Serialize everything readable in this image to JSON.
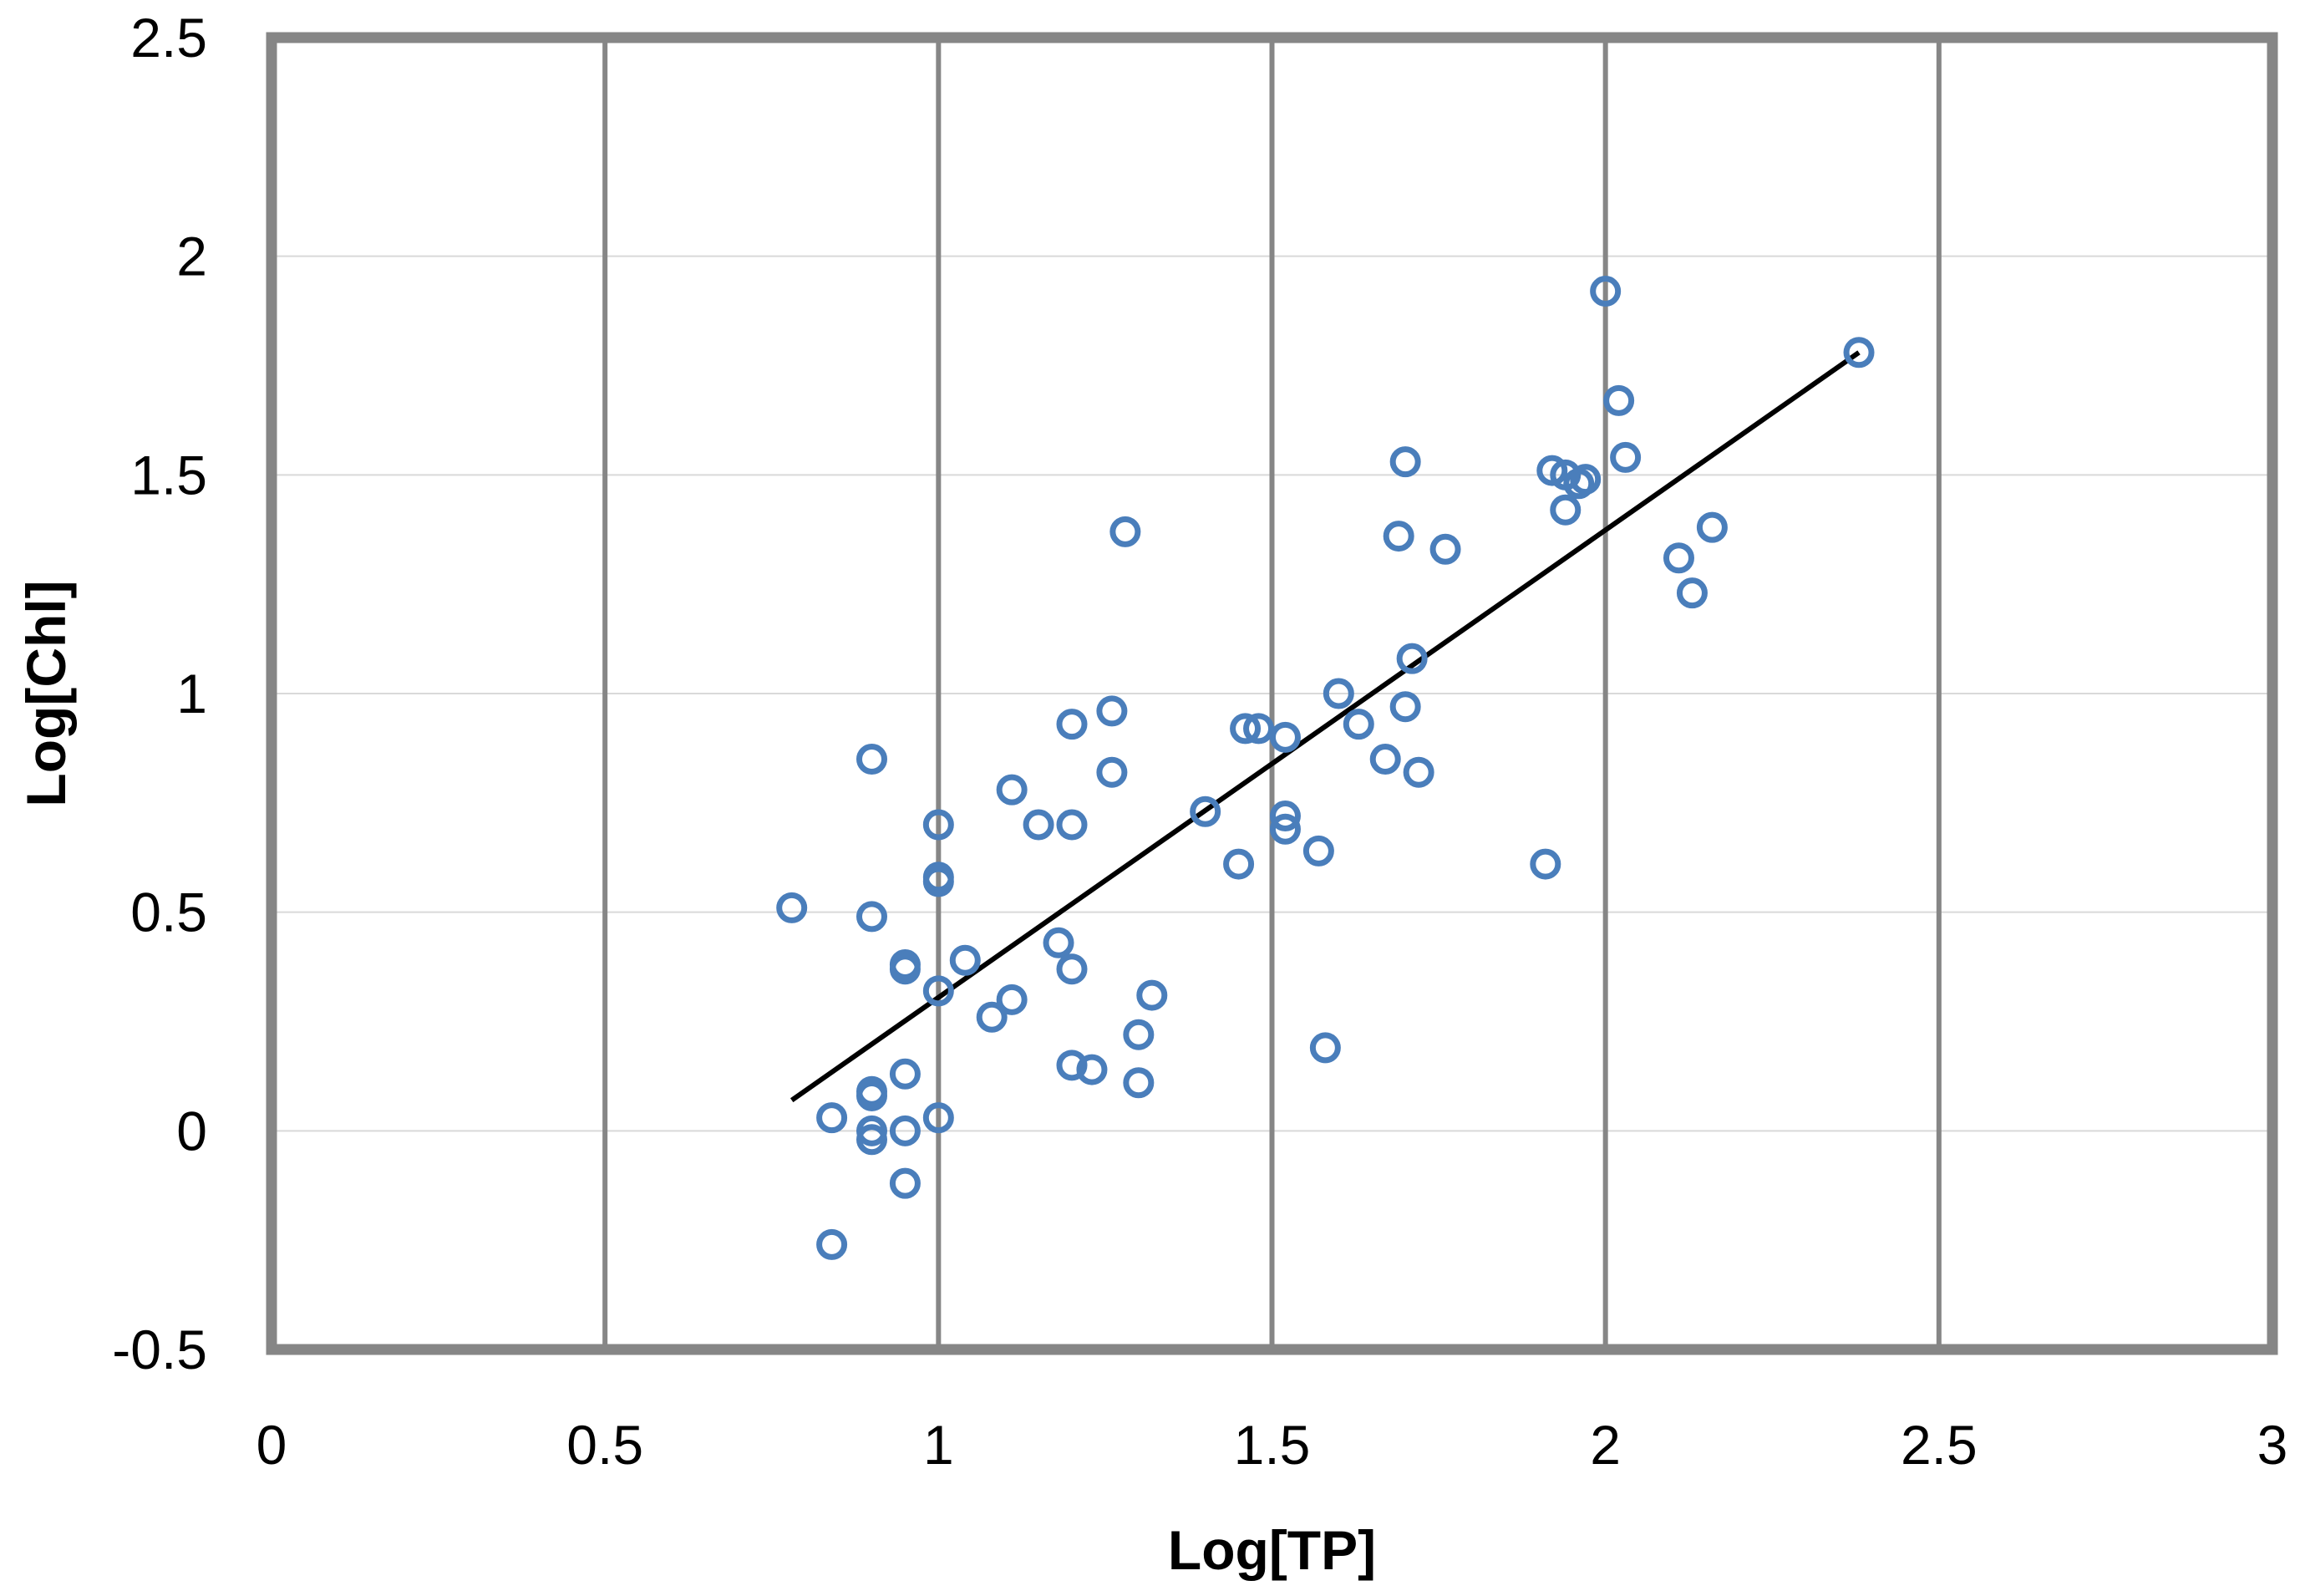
{
  "chart_data": {
    "type": "scatter",
    "title": "",
    "xlabel": "Log[TP]",
    "ylabel": "Log[Chl]",
    "xlim": [
      0,
      3
    ],
    "ylim": [
      -0.5,
      2.5
    ],
    "x_ticks": [
      "0",
      "0.5",
      "1",
      "1.5",
      "2",
      "2.5",
      "3"
    ],
    "y_ticks": [
      "-0.5",
      "0",
      "0.5",
      "1",
      "1.5",
      "2",
      "2.5"
    ],
    "grid": {
      "x_major": true,
      "y_major": true
    },
    "legend": "none",
    "colors": {
      "marker": "#4a7ebb",
      "trendline": "#000000",
      "frame": "#868686",
      "x_grid": "#868686",
      "y_grid": "#d9d9d9"
    },
    "series": [
      {
        "marker": "open-circle",
        "points": [
          [
            0.78,
            0.51
          ],
          [
            0.84,
            0.03
          ],
          [
            0.84,
            -0.26
          ],
          [
            0.9,
            0.85
          ],
          [
            0.9,
            0.49
          ],
          [
            0.9,
            0.09
          ],
          [
            0.9,
            0.08
          ],
          [
            0.9,
            0.0
          ],
          [
            0.9,
            -0.02
          ],
          [
            0.95,
            0.38
          ],
          [
            0.95,
            0.37
          ],
          [
            0.95,
            0.13
          ],
          [
            0.95,
            0.0
          ],
          [
            0.95,
            -0.12
          ],
          [
            1.0,
            0.7
          ],
          [
            1.0,
            0.58
          ],
          [
            1.0,
            0.57
          ],
          [
            1.0,
            0.32
          ],
          [
            1.0,
            0.03
          ],
          [
            1.04,
            0.39
          ],
          [
            1.08,
            0.26
          ],
          [
            1.11,
            0.78
          ],
          [
            1.11,
            0.3
          ],
          [
            1.15,
            0.7
          ],
          [
            1.18,
            0.43
          ],
          [
            1.2,
            0.93
          ],
          [
            1.2,
            0.7
          ],
          [
            1.2,
            0.37
          ],
          [
            1.2,
            0.15
          ],
          [
            1.23,
            0.14
          ],
          [
            1.26,
            0.96
          ],
          [
            1.26,
            0.82
          ],
          [
            1.28,
            1.37
          ],
          [
            1.3,
            0.22
          ],
          [
            1.3,
            0.11
          ],
          [
            1.32,
            0.31
          ],
          [
            1.4,
            0.73
          ],
          [
            1.45,
            0.61
          ],
          [
            1.46,
            0.92
          ],
          [
            1.48,
            0.92
          ],
          [
            1.52,
            0.9
          ],
          [
            1.52,
            0.72
          ],
          [
            1.52,
            0.69
          ],
          [
            1.57,
            0.64
          ],
          [
            1.58,
            0.19
          ],
          [
            1.6,
            1.0
          ],
          [
            1.63,
            0.93
          ],
          [
            1.67,
            0.85
          ],
          [
            1.69,
            1.36
          ],
          [
            1.7,
            1.53
          ],
          [
            1.7,
            0.97
          ],
          [
            1.71,
            1.08
          ],
          [
            1.72,
            0.82
          ],
          [
            1.76,
            1.33
          ],
          [
            1.91,
            0.61
          ],
          [
            1.92,
            1.51
          ],
          [
            1.94,
            1.5
          ],
          [
            1.94,
            1.42
          ],
          [
            1.96,
            1.48
          ],
          [
            1.97,
            1.49
          ],
          [
            2.0,
            1.92
          ],
          [
            2.02,
            1.67
          ],
          [
            2.03,
            1.54
          ],
          [
            2.11,
            1.31
          ],
          [
            2.13,
            1.23
          ],
          [
            2.16,
            1.38
          ],
          [
            2.38,
            1.78
          ]
        ]
      }
    ],
    "trendline": {
      "x": [
        0.78,
        2.38
      ],
      "y": [
        0.07,
        1.78
      ]
    }
  }
}
